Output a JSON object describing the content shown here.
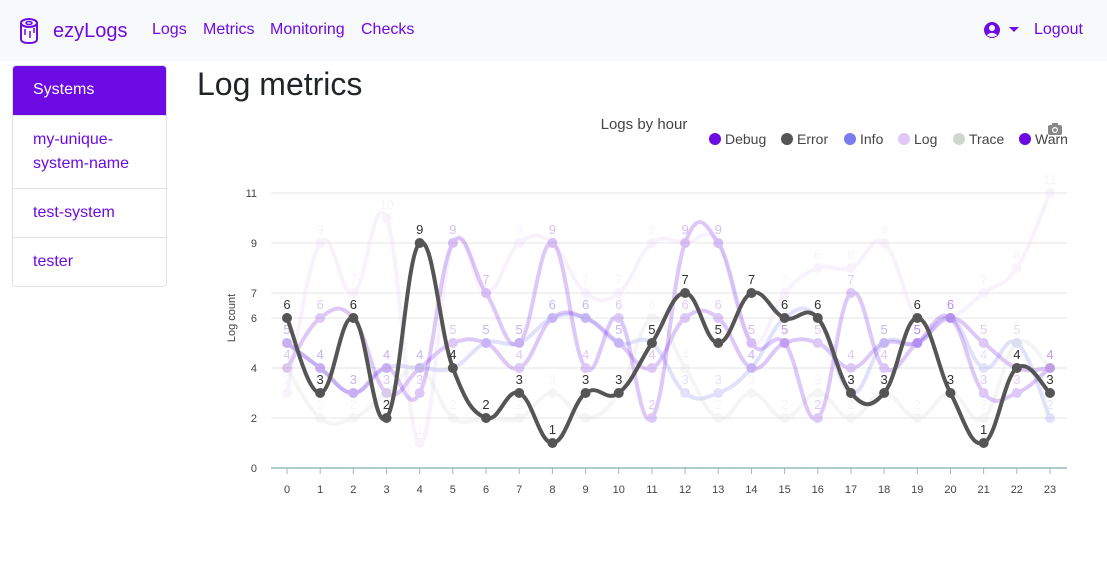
{
  "navbar": {
    "brand": "ezyLogs",
    "links": [
      "Logs",
      "Metrics",
      "Monitoring",
      "Checks"
    ],
    "logout": "Logout"
  },
  "sidebar": {
    "items": [
      "Systems",
      "my-unique-system-name",
      "test-system",
      "tester"
    ]
  },
  "page": {
    "title": "Log metrics"
  },
  "chart_data": {
    "type": "line",
    "title": "Logs by hour",
    "xlabel": "",
    "ylabel": "Log count",
    "x": [
      0,
      1,
      2,
      3,
      4,
      5,
      6,
      7,
      8,
      9,
      10,
      11,
      12,
      13,
      14,
      15,
      16,
      17,
      18,
      19,
      20,
      21,
      22,
      23
    ],
    "ylim": [
      0,
      12
    ],
    "yticks": [
      0,
      2,
      4,
      6,
      7,
      9,
      11
    ],
    "legend_position": "top-right",
    "series": [
      {
        "name": "Debug",
        "color": "#6c0be3",
        "values": [
          4,
          6,
          6,
          3,
          4,
          5,
          5,
          4,
          6,
          6,
          5,
          4,
          6,
          6,
          4,
          5,
          5,
          4,
          5,
          5,
          6,
          5,
          4,
          4
        ]
      },
      {
        "name": "Error",
        "color": "#555555",
        "values": [
          6,
          3,
          6,
          2,
          9,
          4,
          2,
          3,
          1,
          3,
          3,
          5,
          7,
          5,
          7,
          6,
          6,
          3,
          3,
          6,
          3,
          1,
          4,
          3
        ]
      },
      {
        "name": "Info",
        "color": "#7b7bf0",
        "values": [
          5,
          4,
          3,
          4,
          4,
          4,
          5,
          5,
          6,
          6,
          5,
          5,
          3,
          3,
          4,
          6,
          6,
          3,
          5,
          5,
          6,
          4,
          5,
          2
        ]
      },
      {
        "name": "Log",
        "color": "#e3c6f5",
        "values": [
          3,
          9,
          7,
          10,
          1,
          9,
          7,
          9,
          9,
          7,
          7,
          9,
          9,
          9,
          5,
          7,
          8,
          8,
          9,
          6,
          6,
          7,
          8,
          11
        ]
      },
      {
        "name": "Trace",
        "color": "#cfd6cf",
        "values": [
          4,
          2,
          2,
          3,
          4,
          2,
          2,
          2,
          3,
          2,
          3,
          6,
          4,
          2,
          3,
          2,
          3,
          2,
          3,
          2,
          3,
          2,
          5,
          4
        ]
      },
      {
        "name": "Warn",
        "color": "#6c0be3",
        "values": [
          5,
          4,
          3,
          4,
          3,
          9,
          7,
          5,
          9,
          4,
          6,
          2,
          9,
          9,
          5,
          5,
          2,
          7,
          4,
          5,
          6,
          3,
          3,
          4
        ]
      }
    ],
    "colors": {
      "accent": "#6c0be3",
      "muted": "#cfd6cf"
    }
  }
}
